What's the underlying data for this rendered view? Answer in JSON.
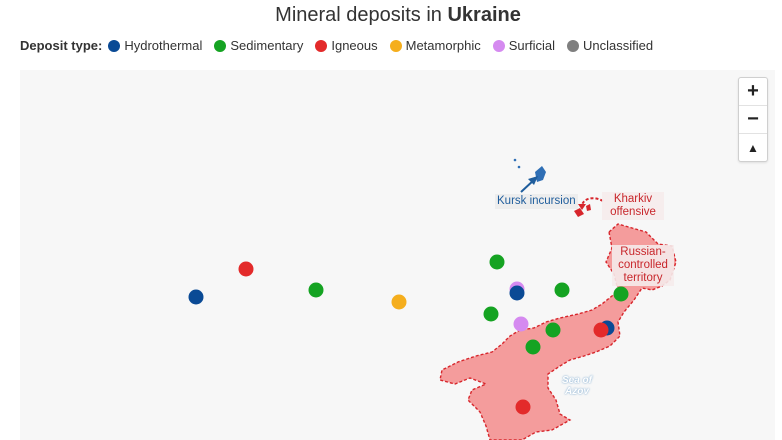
{
  "title": {
    "prefix": "Mineral deposits in ",
    "country": "Ukraine"
  },
  "legend": {
    "label": "Deposit type:",
    "items": [
      {
        "key": "hydrothermal",
        "label": "Hydrothermal",
        "color": "#0a4a95"
      },
      {
        "key": "sedimentary",
        "label": "Sedimentary",
        "color": "#15a322"
      },
      {
        "key": "igneous",
        "label": "Igneous",
        "color": "#e32a2a"
      },
      {
        "key": "metamorphic",
        "label": "Metamorphic",
        "color": "#f5ae1d"
      },
      {
        "key": "surficial",
        "label": "Surficial",
        "color": "#d58af0"
      },
      {
        "key": "unclassified",
        "label": "Unclassified",
        "color": "#7f7f7f"
      }
    ]
  },
  "controls": {
    "zoom_in": "+",
    "zoom_out": "−",
    "reset": "▲"
  },
  "annotations": {
    "kursk": "Kursk incursion",
    "kharkiv": "Kharkiv offensive",
    "occupied": "Russian-controlled territory",
    "sea": "Sea of Azov"
  },
  "colors": {
    "occupied_fill": "#f49c9c",
    "occupied_border": "#d7262c",
    "kursk": "#2f6fb5"
  }
}
